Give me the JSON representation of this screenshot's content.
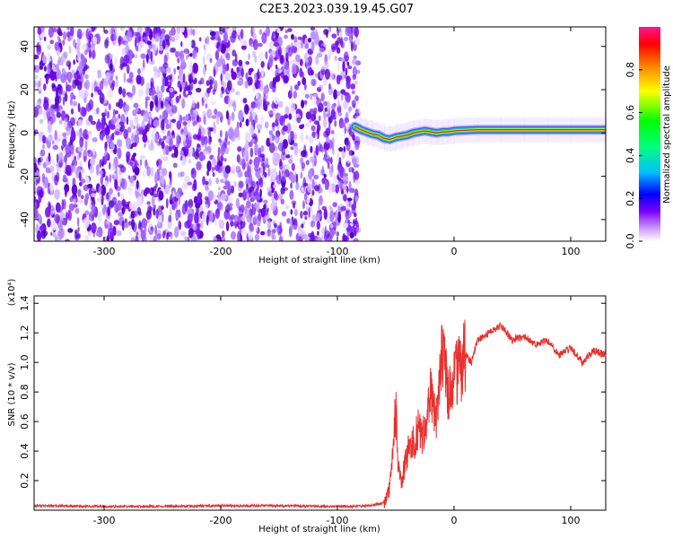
{
  "title": "C2E3.2023.039.19.45.G07",
  "chart_data": [
    {
      "type": "heatmap",
      "xlabel": "Height of straight line (km)",
      "ylabel": "Frequency (Hz)",
      "xlim": [
        -360,
        130
      ],
      "ylim": [
        -50,
        49
      ],
      "x_ticks": [
        -300,
        -200,
        -100,
        0,
        100
      ],
      "y_ticks": [
        -40,
        -20,
        0,
        20,
        40
      ],
      "noise_region_x": [
        -360,
        -82
      ],
      "signal_trace": {
        "x": [
          -85,
          -80,
          -75,
          -70,
          -65,
          -60,
          -55,
          -50,
          -45,
          -40,
          -35,
          -30,
          -25,
          -20,
          -15,
          -10,
          -5,
          0,
          20,
          40,
          60,
          80,
          100,
          130
        ],
        "freq": [
          3.0,
          1.5,
          0.5,
          -0.5,
          -1.0,
          -2.5,
          -3.0,
          -2.0,
          -1.5,
          -1.0,
          0.0,
          0.5,
          1.0,
          0.5,
          0.0,
          0.5,
          0.5,
          1.0,
          1.5,
          1.5,
          1.5,
          1.5,
          1.5,
          1.5
        ]
      },
      "colorbar": {
        "label": "Normalized spectral amplitude",
        "range": [
          0,
          1
        ],
        "ticks": [
          "0.0",
          "0.2",
          "0.4",
          "0.6",
          "0.8"
        ],
        "colors": [
          "#ffffff",
          "#9b4dff",
          "#0000ff",
          "#00ccff",
          "#00ff00",
          "#ffff00",
          "#ff8000",
          "#ff0000",
          "#ff1493"
        ]
      }
    },
    {
      "type": "line",
      "xlabel": "Height of straight line (km)",
      "ylabel": "SNR (10 * v/v)",
      "scale_note": "(x10⁴)",
      "xlim": [
        -360,
        130
      ],
      "ylim": [
        0,
        1.45
      ],
      "x_ticks": [
        -300,
        -200,
        -100,
        0,
        100
      ],
      "y_ticks": [
        "0.2",
        "0.4",
        "0.6",
        "0.8",
        "1.0",
        "1.2",
        "1.4"
      ],
      "line_color": "#e8302e",
      "series": [
        {
          "x": [
            -360,
            -300,
            -250,
            -200,
            -150,
            -100,
            -75,
            -60,
            -55,
            -52,
            -50,
            -48,
            -45,
            -40,
            -35,
            -30,
            -25,
            -20,
            -15,
            -12,
            -10,
            -5,
            0,
            5,
            10,
            15,
            20,
            30,
            40,
            50,
            60,
            70,
            80,
            90,
            100,
            110,
            120,
            130
          ],
          "y": [
            0.03,
            0.025,
            0.025,
            0.03,
            0.03,
            0.025,
            0.03,
            0.05,
            0.15,
            0.45,
            0.7,
            0.35,
            0.2,
            0.4,
            0.45,
            0.55,
            0.5,
            0.8,
            0.6,
            0.95,
            1.1,
            0.75,
            0.9,
            0.95,
            1.05,
            1.0,
            1.15,
            1.2,
            1.25,
            1.15,
            1.18,
            1.12,
            1.15,
            1.05,
            1.1,
            1.0,
            1.08,
            1.05
          ]
        }
      ]
    }
  ]
}
